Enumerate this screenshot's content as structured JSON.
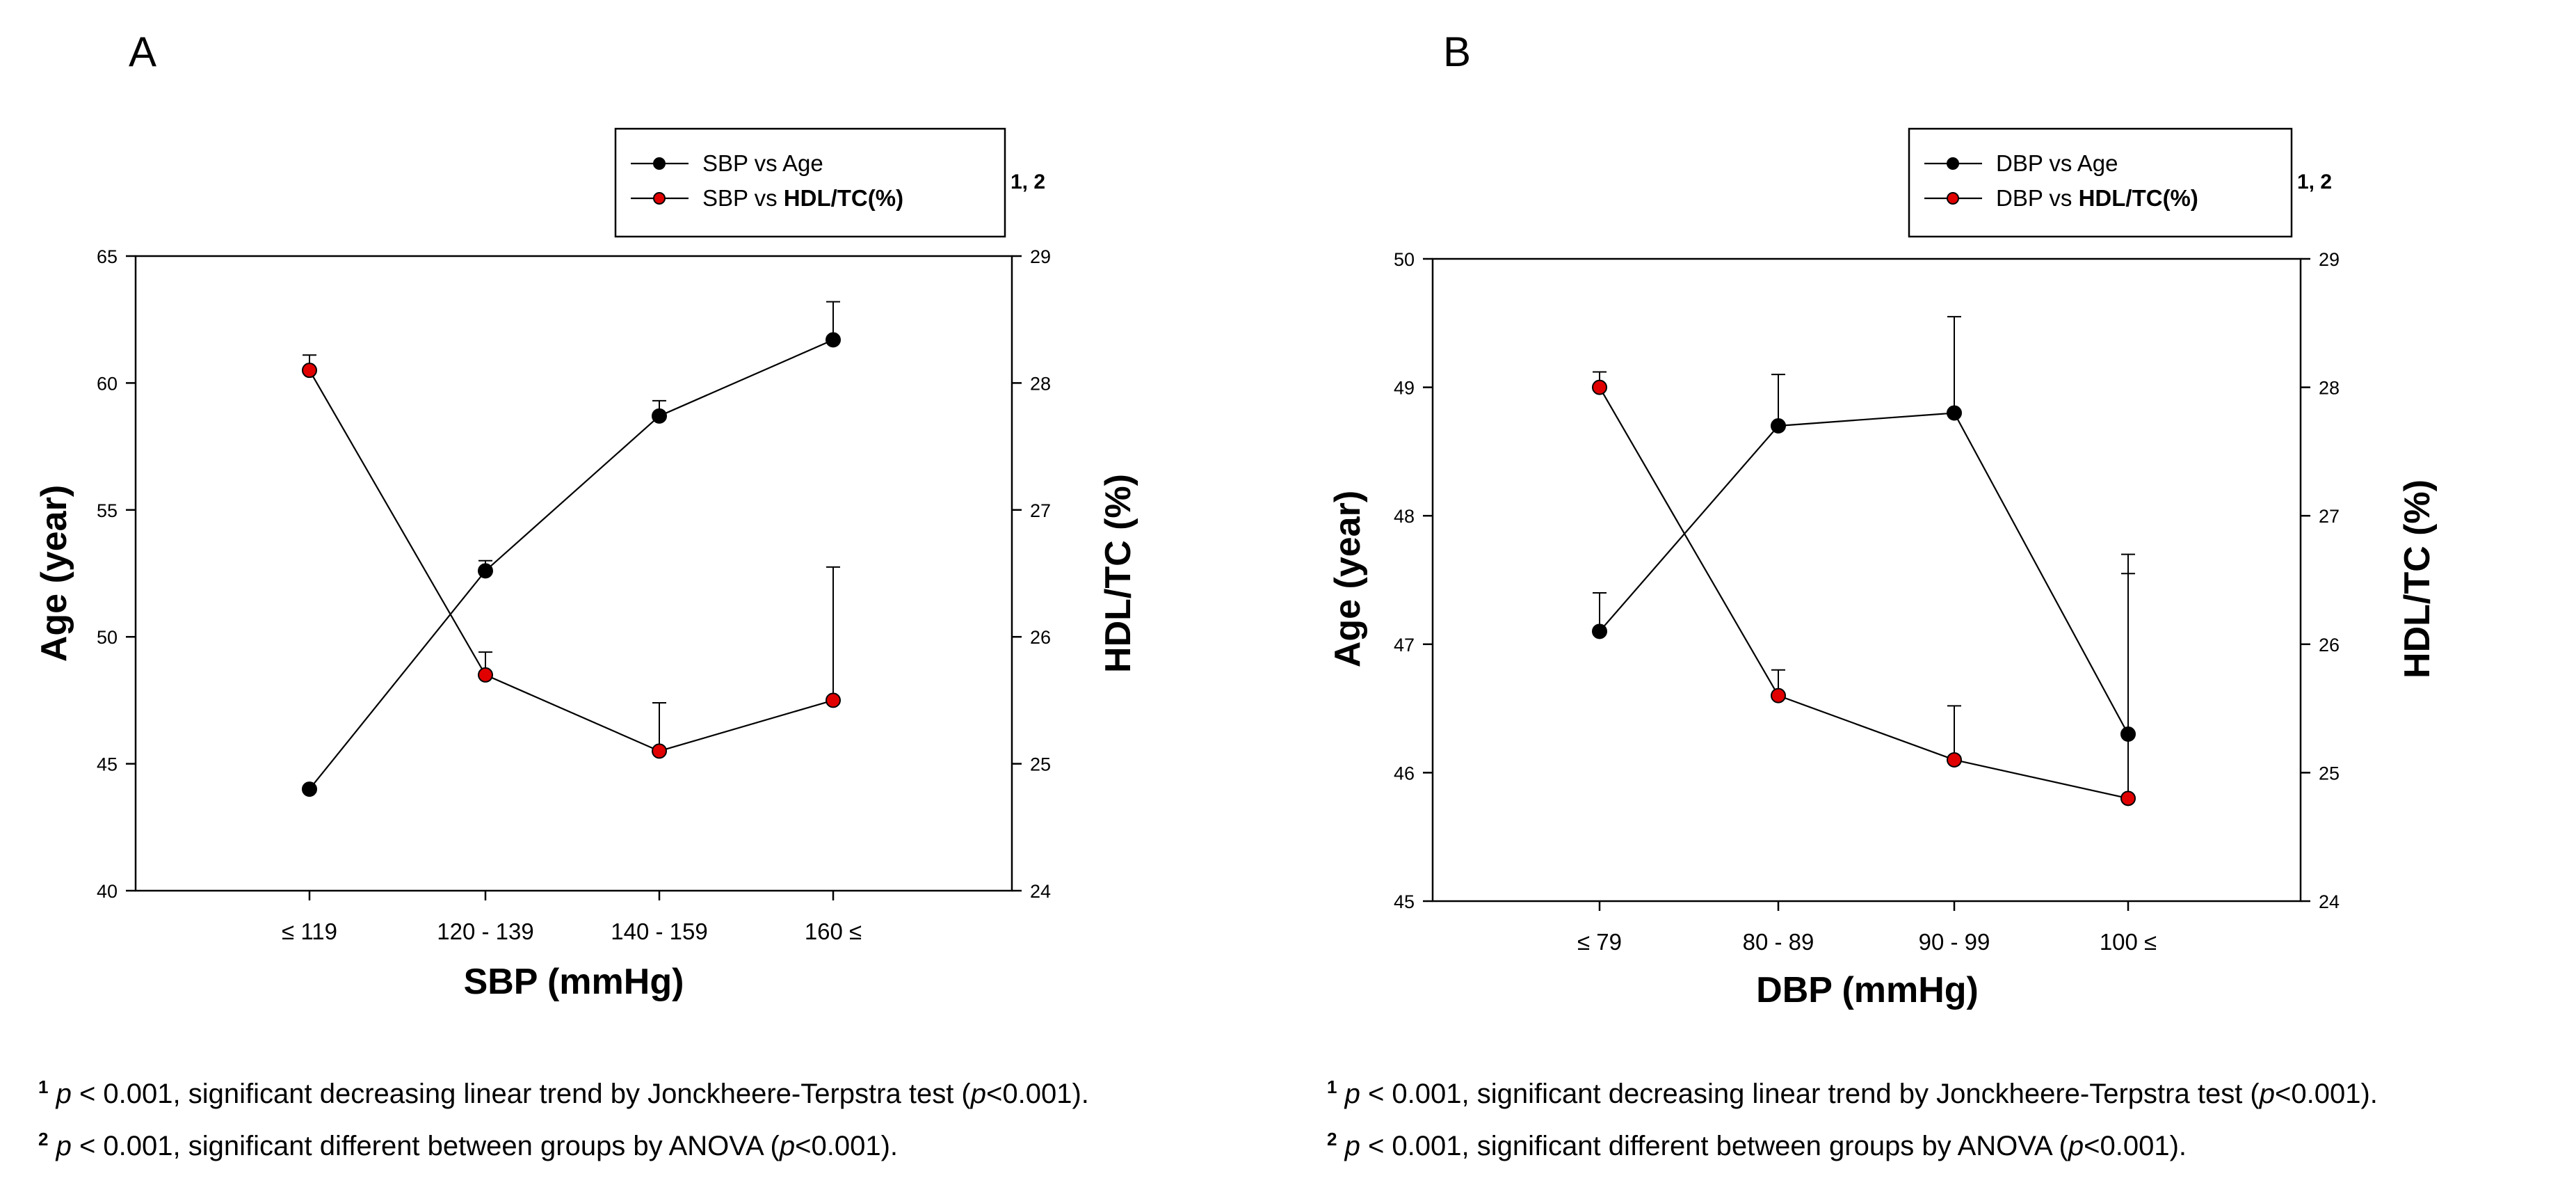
{
  "chart_data": [
    {
      "type": "line",
      "panel_label": "A",
      "x_title": "SBP (mmHg)",
      "categories": [
        "≤ 119",
        "120 - 139",
        "140 - 159",
        "160 ≤"
      ],
      "y_left": {
        "title": "Age (year)",
        "lim": [
          40,
          65
        ],
        "ticks": [
          "40",
          "45",
          "50",
          "55",
          "60",
          "65"
        ]
      },
      "y_right": {
        "title": "HDL/TC (%)",
        "lim": [
          24,
          29
        ],
        "ticks": [
          "24",
          "25",
          "26",
          "27",
          "28",
          "29"
        ]
      },
      "series": [
        {
          "name": "SBP vs Age",
          "axis": "left",
          "color": "#000000",
          "values": [
            44.0,
            52.6,
            58.7,
            61.7
          ],
          "error": [
            0.0,
            0.4,
            0.6,
            1.5
          ]
        },
        {
          "name": "SBP vs HDL/TC(%)",
          "axis": "right",
          "color": "#e00000",
          "values": [
            28.1,
            25.7,
            25.1,
            25.5
          ],
          "error": [
            0.12,
            0.18,
            0.38,
            1.05
          ]
        }
      ],
      "legend": {
        "age": {
          "prefix": "SBP vs Age"
        },
        "hdl": {
          "prefix": "SBP vs ",
          "bold": "HDL/TC(%)",
          "sup": "1, 2"
        }
      },
      "notes": [
        {
          "mark": "1",
          "p": "p",
          "text": " < 0.001, significant decreasing linear trend by Jonckheere-Terpstra test (",
          "p2": "p",
          "end": "<0.001)."
        },
        {
          "mark": "2",
          "p": "p",
          "text": " < 0.001, significant different between groups by ANOVA (",
          "p2": "p",
          "end": "<0.001)."
        }
      ]
    },
    {
      "type": "line",
      "panel_label": "B",
      "x_title": "DBP (mmHg)",
      "categories": [
        "≤ 79",
        "80 - 89",
        "90 - 99",
        "100 ≤"
      ],
      "y_left": {
        "title": "Age (year)",
        "lim": [
          45,
          50
        ],
        "ticks": [
          "45",
          "46",
          "47",
          "48",
          "49",
          "50"
        ]
      },
      "y_right": {
        "title": "HDL/TC (%)",
        "lim": [
          24,
          29
        ],
        "ticks": [
          "24",
          "25",
          "26",
          "27",
          "28",
          "29"
        ]
      },
      "series": [
        {
          "name": "DBP vs Age",
          "axis": "left",
          "color": "#000000",
          "values": [
            47.1,
            48.7,
            48.8,
            46.3
          ],
          "error": [
            0.3,
            0.4,
            0.75,
            1.25
          ]
        },
        {
          "name": "DBP vs HDL/TC(%)",
          "axis": "right",
          "color": "#e00000",
          "values": [
            28.0,
            25.6,
            25.1,
            24.8
          ],
          "error": [
            0.12,
            0.2,
            0.42,
            1.9
          ]
        }
      ],
      "legend": {
        "age": {
          "prefix": "DBP vs Age"
        },
        "hdl": {
          "prefix": "DBP vs ",
          "bold": "HDL/TC(%)",
          "sup": "1, 2"
        }
      },
      "notes": [
        {
          "mark": "1",
          "p": "p",
          "text": " < 0.001, significant decreasing linear trend by Jonckheere-Terpstra test (",
          "p2": "p",
          "end": "<0.001)."
        },
        {
          "mark": "2",
          "p": "p",
          "text": " < 0.001, significant different between groups by ANOVA (",
          "p2": "p",
          "end": "<0.001)."
        }
      ]
    }
  ]
}
